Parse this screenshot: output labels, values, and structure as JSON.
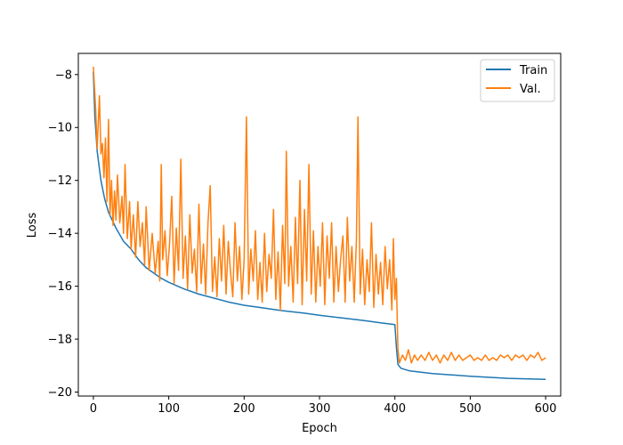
{
  "chart_data": {
    "type": "line",
    "xlabel": "Epoch",
    "ylabel": "Loss",
    "xlim": [
      -20,
      620
    ],
    "ylim": [
      -20.15,
      -7.2
    ],
    "xticks": [
      0,
      100,
      200,
      300,
      400,
      500,
      600
    ],
    "yticks": [
      -20,
      -18,
      -16,
      -14,
      -12,
      -10,
      -8
    ],
    "legend_position": "top-right",
    "grid": false,
    "series": [
      {
        "name": "Train",
        "color": "#1f77b4",
        "points": [
          [
            0,
            -7.9
          ],
          [
            2,
            -9.6
          ],
          [
            5,
            -10.9
          ],
          [
            10,
            -12.0
          ],
          [
            15,
            -12.7
          ],
          [
            20,
            -13.2
          ],
          [
            30,
            -13.8
          ],
          [
            40,
            -14.3
          ],
          [
            50,
            -14.6
          ],
          [
            60,
            -15.0
          ],
          [
            70,
            -15.3
          ],
          [
            80,
            -15.5
          ],
          [
            90,
            -15.7
          ],
          [
            100,
            -15.85
          ],
          [
            120,
            -16.1
          ],
          [
            140,
            -16.3
          ],
          [
            160,
            -16.45
          ],
          [
            180,
            -16.6
          ],
          [
            200,
            -16.72
          ],
          [
            220,
            -16.8
          ],
          [
            250,
            -16.92
          ],
          [
            280,
            -17.02
          ],
          [
            300,
            -17.1
          ],
          [
            330,
            -17.2
          ],
          [
            360,
            -17.3
          ],
          [
            380,
            -17.38
          ],
          [
            400,
            -17.45
          ],
          [
            402,
            -18.3
          ],
          [
            404,
            -18.95
          ],
          [
            408,
            -19.1
          ],
          [
            420,
            -19.2
          ],
          [
            450,
            -19.3
          ],
          [
            500,
            -19.4
          ],
          [
            550,
            -19.48
          ],
          [
            600,
            -19.52
          ]
        ]
      },
      {
        "name": "Val.",
        "color": "#ff7f0e",
        "points": [
          [
            0,
            -7.7
          ],
          [
            3,
            -9.3
          ],
          [
            5,
            -10.8
          ],
          [
            8,
            -8.8
          ],
          [
            10,
            -11.0
          ],
          [
            12,
            -10.6
          ],
          [
            14,
            -11.9
          ],
          [
            16,
            -10.4
          ],
          [
            18,
            -12.8
          ],
          [
            20,
            -9.7
          ],
          [
            22,
            -13.3
          ],
          [
            24,
            -12.0
          ],
          [
            26,
            -13.7
          ],
          [
            28,
            -12.4
          ],
          [
            30,
            -13.5
          ],
          [
            32,
            -11.8
          ],
          [
            35,
            -13.6
          ],
          [
            38,
            -12.6
          ],
          [
            40,
            -14.0
          ],
          [
            42,
            -11.4
          ],
          [
            45,
            -14.2
          ],
          [
            48,
            -12.8
          ],
          [
            50,
            -14.6
          ],
          [
            53,
            -13.3
          ],
          [
            56,
            -14.9
          ],
          [
            59,
            -12.8
          ],
          [
            62,
            -14.5
          ],
          [
            65,
            -13.6
          ],
          [
            68,
            -15.2
          ],
          [
            70,
            -13.0
          ],
          [
            74,
            -15.4
          ],
          [
            78,
            -14.0
          ],
          [
            82,
            -15.5
          ],
          [
            86,
            -14.3
          ],
          [
            88,
            -15.8
          ],
          [
            90,
            -11.4
          ],
          [
            92,
            -15.0
          ],
          [
            95,
            -13.9
          ],
          [
            98,
            -15.6
          ],
          [
            101,
            -14.4
          ],
          [
            104,
            -12.6
          ],
          [
            107,
            -15.9
          ],
          [
            110,
            -13.8
          ],
          [
            113,
            -15.4
          ],
          [
            116,
            -11.2
          ],
          [
            119,
            -15.7
          ],
          [
            122,
            -14.1
          ],
          [
            125,
            -16.1
          ],
          [
            128,
            -13.3
          ],
          [
            131,
            -15.5
          ],
          [
            134,
            -14.6
          ],
          [
            137,
            -16.2
          ],
          [
            140,
            -12.9
          ],
          [
            143,
            -15.9
          ],
          [
            146,
            -14.4
          ],
          [
            149,
            -16.3
          ],
          [
            152,
            -13.6
          ],
          [
            155,
            -12.2
          ],
          [
            158,
            -16.2
          ],
          [
            161,
            -14.9
          ],
          [
            164,
            -16.4
          ],
          [
            167,
            -14.2
          ],
          [
            170,
            -15.8
          ],
          [
            173,
            -13.7
          ],
          [
            176,
            -16.3
          ],
          [
            179,
            -14.3
          ],
          [
            182,
            -15.5
          ],
          [
            185,
            -16.4
          ],
          [
            188,
            -13.6
          ],
          [
            191,
            -15.8
          ],
          [
            194,
            -14.5
          ],
          [
            197,
            -16.5
          ],
          [
            200,
            -15.0
          ],
          [
            203,
            -9.6
          ],
          [
            206,
            -16.3
          ],
          [
            209,
            -14.6
          ],
          [
            212,
            -15.8
          ],
          [
            215,
            -13.9
          ],
          [
            218,
            -16.5
          ],
          [
            221,
            -15.1
          ],
          [
            224,
            -16.6
          ],
          [
            227,
            -14.0
          ],
          [
            230,
            -16.2
          ],
          [
            233,
            -14.8
          ],
          [
            236,
            -15.7
          ],
          [
            239,
            -13.1
          ],
          [
            242,
            -16.5
          ],
          [
            245,
            -14.7
          ],
          [
            248,
            -16.9
          ],
          [
            251,
            -13.7
          ],
          [
            254,
            -15.9
          ],
          [
            256,
            -10.9
          ],
          [
            259,
            -16.0
          ],
          [
            262,
            -14.5
          ],
          [
            265,
            -16.6
          ],
          [
            268,
            -13.4
          ],
          [
            271,
            -15.9
          ],
          [
            274,
            -12.0
          ],
          [
            277,
            -16.7
          ],
          [
            280,
            -13.1
          ],
          [
            283,
            -15.8
          ],
          [
            286,
            -11.4
          ],
          [
            289,
            -16.3
          ],
          [
            292,
            -13.9
          ],
          [
            295,
            -16.6
          ],
          [
            298,
            -14.5
          ],
          [
            301,
            -16.0
          ],
          [
            304,
            -13.6
          ],
          [
            307,
            -16.7
          ],
          [
            310,
            -14.1
          ],
          [
            313,
            -15.7
          ],
          [
            316,
            -13.6
          ],
          [
            319,
            -16.6
          ],
          [
            322,
            -14.5
          ],
          [
            325,
            -16.2
          ],
          [
            328,
            -15.0
          ],
          [
            331,
            -14.1
          ],
          [
            334,
            -16.6
          ],
          [
            337,
            -13.4
          ],
          [
            340,
            -15.8
          ],
          [
            343,
            -14.5
          ],
          [
            346,
            -16.6
          ],
          [
            349,
            -14.2
          ],
          [
            351,
            -9.6
          ],
          [
            354,
            -16.3
          ],
          [
            357,
            -14.6
          ],
          [
            360,
            -16.7
          ],
          [
            363,
            -15.0
          ],
          [
            366,
            -16.2
          ],
          [
            369,
            -13.6
          ],
          [
            372,
            -16.8
          ],
          [
            375,
            -14.8
          ],
          [
            378,
            -16.3
          ],
          [
            381,
            -15.1
          ],
          [
            384,
            -16.7
          ],
          [
            387,
            -14.5
          ],
          [
            390,
            -16.1
          ],
          [
            393,
            -15.0
          ],
          [
            396,
            -16.9
          ],
          [
            398,
            -14.2
          ],
          [
            400,
            -16.5
          ],
          [
            402,
            -15.7
          ],
          [
            403,
            -17.0
          ],
          [
            404,
            -18.4
          ],
          [
            406,
            -18.9
          ],
          [
            410,
            -18.6
          ],
          [
            414,
            -18.8
          ],
          [
            418,
            -18.4
          ],
          [
            422,
            -18.9
          ],
          [
            426,
            -18.6
          ],
          [
            430,
            -18.8
          ],
          [
            435,
            -18.6
          ],
          [
            440,
            -18.8
          ],
          [
            445,
            -18.5
          ],
          [
            450,
            -18.8
          ],
          [
            455,
            -18.6
          ],
          [
            460,
            -18.9
          ],
          [
            465,
            -18.6
          ],
          [
            470,
            -18.8
          ],
          [
            475,
            -18.5
          ],
          [
            480,
            -18.8
          ],
          [
            485,
            -18.6
          ],
          [
            490,
            -18.8
          ],
          [
            495,
            -18.7
          ],
          [
            500,
            -18.6
          ],
          [
            505,
            -18.8
          ],
          [
            510,
            -18.7
          ],
          [
            515,
            -18.8
          ],
          [
            520,
            -18.6
          ],
          [
            525,
            -18.8
          ],
          [
            530,
            -18.7
          ],
          [
            535,
            -18.8
          ],
          [
            540,
            -18.6
          ],
          [
            545,
            -18.7
          ],
          [
            550,
            -18.6
          ],
          [
            555,
            -18.8
          ],
          [
            560,
            -18.6
          ],
          [
            565,
            -18.7
          ],
          [
            570,
            -18.6
          ],
          [
            575,
            -18.8
          ],
          [
            580,
            -18.6
          ],
          [
            585,
            -18.7
          ],
          [
            590,
            -18.5
          ],
          [
            595,
            -18.8
          ],
          [
            600,
            -18.7
          ]
        ]
      }
    ]
  }
}
